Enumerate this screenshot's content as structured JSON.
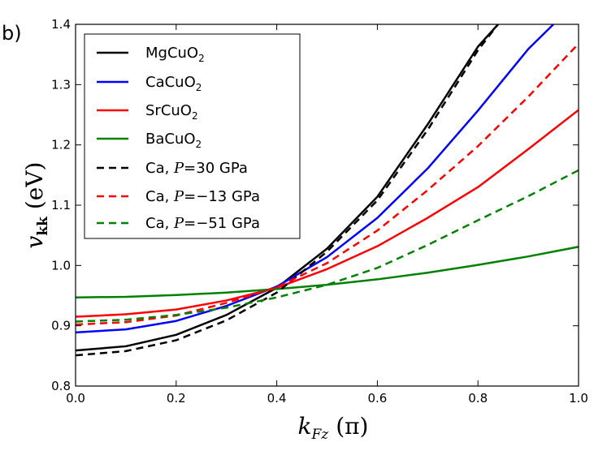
{
  "chart_data": {
    "type": "line",
    "panel_label": "b)",
    "xlabel": {
      "symbol": "k",
      "subscript": "Fz",
      "unit": "(π)"
    },
    "ylabel": {
      "symbol": "v",
      "subscript": "kk",
      "unit": "(eV)"
    },
    "xlim": [
      0.0,
      1.0
    ],
    "ylim": [
      0.8,
      1.4
    ],
    "xticks": [
      "0.0",
      "0.2",
      "0.4",
      "0.6",
      "0.8",
      "1.0"
    ],
    "yticks": [
      "0.8",
      "0.9",
      "1.0",
      "1.1",
      "1.2",
      "1.3",
      "1.4"
    ],
    "legend_position": "top-left",
    "series": [
      {
        "name": "MgCuO2",
        "label_main": "MgCuO",
        "label_sub": "2",
        "color": "#000000",
        "style": "solid",
        "x": [
          0.0,
          0.1,
          0.2,
          0.3,
          0.4,
          0.5,
          0.6,
          0.7,
          0.8,
          0.84
        ],
        "y": [
          0.859,
          0.866,
          0.885,
          0.918,
          0.963,
          1.028,
          1.114,
          1.234,
          1.363,
          1.4
        ]
      },
      {
        "name": "CaCuO2",
        "label_main": "CaCuO",
        "label_sub": "2",
        "color": "#0000ff",
        "style": "solid",
        "x": [
          0.0,
          0.1,
          0.2,
          0.3,
          0.4,
          0.5,
          0.6,
          0.7,
          0.8,
          0.9,
          0.95
        ],
        "y": [
          0.889,
          0.894,
          0.908,
          0.933,
          0.965,
          1.014,
          1.079,
          1.161,
          1.257,
          1.359,
          1.4
        ]
      },
      {
        "name": "SrCuO2",
        "label_main": "SrCuO",
        "label_sub": "2",
        "color": "#ff0000",
        "style": "solid",
        "x": [
          0.0,
          0.1,
          0.2,
          0.3,
          0.4,
          0.5,
          0.6,
          0.7,
          0.8,
          0.9,
          1.0
        ],
        "y": [
          0.915,
          0.919,
          0.927,
          0.942,
          0.963,
          0.994,
          1.032,
          1.079,
          1.13,
          1.193,
          1.258
        ]
      },
      {
        "name": "BaCuO2",
        "label_main": "BaCuO",
        "label_sub": "2",
        "color": "#008000",
        "style": "solid",
        "x": [
          0.0,
          0.1,
          0.2,
          0.3,
          0.4,
          0.5,
          0.6,
          0.7,
          0.8,
          0.9,
          1.0
        ],
        "y": [
          0.947,
          0.948,
          0.951,
          0.955,
          0.961,
          0.968,
          0.977,
          0.988,
          1.001,
          1.015,
          1.031
        ]
      },
      {
        "name": "Ca, P=30 GPa",
        "label_main": "Ca, ",
        "label_math": "P",
        "label_rest": "=30 GPa",
        "color": "#000000",
        "style": "dashed",
        "x": [
          0.0,
          0.1,
          0.2,
          0.3,
          0.4,
          0.5,
          0.6,
          0.7,
          0.8,
          0.84
        ],
        "y": [
          0.851,
          0.858,
          0.876,
          0.909,
          0.955,
          1.023,
          1.108,
          1.225,
          1.357,
          1.4
        ]
      },
      {
        "name": "Ca, P=−13 GPa",
        "label_main": "Ca, ",
        "label_math": "P",
        "label_rest": "=−13 GPa",
        "color": "#ff0000",
        "style": "dashed",
        "x": [
          0.0,
          0.1,
          0.2,
          0.3,
          0.4,
          0.5,
          0.6,
          0.7,
          0.8,
          0.9,
          1.0
        ],
        "y": [
          0.902,
          0.906,
          0.917,
          0.938,
          0.964,
          1.004,
          1.058,
          1.125,
          1.198,
          1.28,
          1.368
        ]
      },
      {
        "name": "Ca, P=−51 GPa",
        "label_main": "Ca, ",
        "label_math": "P",
        "label_rest": "=−51 GPa",
        "color": "#008000",
        "style": "dashed",
        "x": [
          0.0,
          0.1,
          0.2,
          0.3,
          0.4,
          0.5,
          0.6,
          0.7,
          0.8,
          0.9,
          1.0
        ],
        "y": [
          0.907,
          0.91,
          0.918,
          0.93,
          0.947,
          0.968,
          0.996,
          1.034,
          1.075,
          1.115,
          1.158
        ]
      }
    ]
  }
}
